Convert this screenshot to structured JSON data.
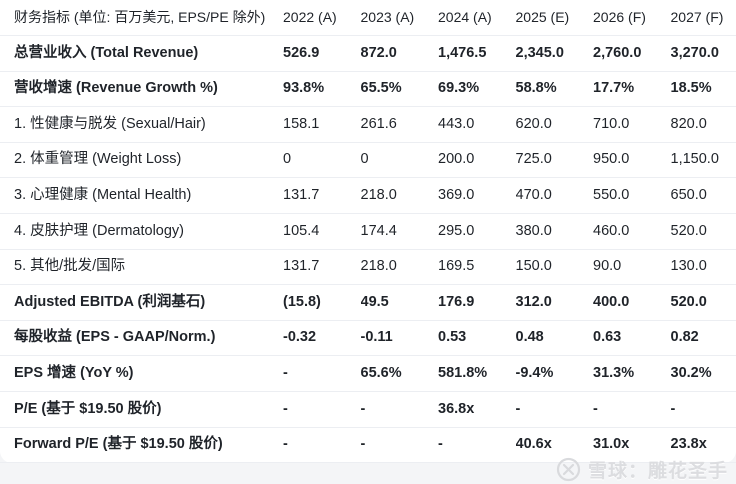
{
  "page": {
    "background_color": "#f4f5f7",
    "card_background_color": "#ffffff",
    "divider_color": "#eceef2",
    "text_color": "#1f2329"
  },
  "chart_data": {
    "type": "table",
    "title": "财务指标 (单位: 百万美元, EPS/PE 除外)",
    "columns": [
      "财务指标 (单位: 百万美元, EPS/PE 除外)",
      "2022 (A)",
      "2023 (A)",
      "2024 (A)",
      "2025 (E)",
      "2026 (F)",
      "2027 (F)"
    ],
    "rows": [
      {
        "label": "总营业收入 (Total Revenue)",
        "values": [
          "526.9",
          "872.0",
          "1,476.5",
          "2,345.0",
          "2,760.0",
          "3,270.0"
        ],
        "bold": true
      },
      {
        "label": "营收增速 (Revenue Growth %)",
        "values": [
          "93.8%",
          "65.5%",
          "69.3%",
          "58.8%",
          "17.7%",
          "18.5%"
        ],
        "bold": true
      },
      {
        "label": "1. 性健康与脱发 (Sexual/Hair)",
        "values": [
          "158.1",
          "261.6",
          "443.0",
          "620.0",
          "710.0",
          "820.0"
        ],
        "bold": false
      },
      {
        "label": "2. 体重管理 (Weight Loss)",
        "values": [
          "0",
          "0",
          "200.0",
          "725.0",
          "950.0",
          "1,150.0"
        ],
        "bold": false
      },
      {
        "label": "3. 心理健康 (Mental Health)",
        "values": [
          "131.7",
          "218.0",
          "369.0",
          "470.0",
          "550.0",
          "650.0"
        ],
        "bold": false
      },
      {
        "label": "4. 皮肤护理 (Dermatology)",
        "values": [
          "105.4",
          "174.4",
          "295.0",
          "380.0",
          "460.0",
          "520.0"
        ],
        "bold": false
      },
      {
        "label": "5. 其他/批发/国际",
        "values": [
          "131.7",
          "218.0",
          "169.5",
          "150.0",
          "90.0",
          "130.0"
        ],
        "bold": false
      },
      {
        "label": "Adjusted EBITDA (利润基石)",
        "values": [
          "(15.8)",
          "49.5",
          "176.9",
          "312.0",
          "400.0",
          "520.0"
        ],
        "bold": true
      },
      {
        "label": "每股收益 (EPS - GAAP/Norm.)",
        "values": [
          "-0.32",
          "-0.11",
          "0.53",
          "0.48",
          "0.63",
          "0.82"
        ],
        "bold": true
      },
      {
        "label": "EPS 增速 (YoY %)",
        "values": [
          "-",
          "65.6%",
          "581.8%",
          "-9.4%",
          "31.3%",
          "30.2%"
        ],
        "bold": true
      },
      {
        "label": "P/E (基于 $19.50 股价)",
        "values": [
          "-",
          "-",
          "36.8x",
          "-",
          "-",
          "-"
        ],
        "bold": true
      },
      {
        "label": "Forward P/E (基于 $19.50 股价)",
        "values": [
          "-",
          "-",
          "-",
          "40.6x",
          "31.0x",
          "23.8x"
        ],
        "bold": true
      }
    ]
  },
  "watermark": {
    "logo_icon": "xueqiu-logo",
    "text": "雪球：雕花圣手",
    "color": "#dcdde0"
  }
}
